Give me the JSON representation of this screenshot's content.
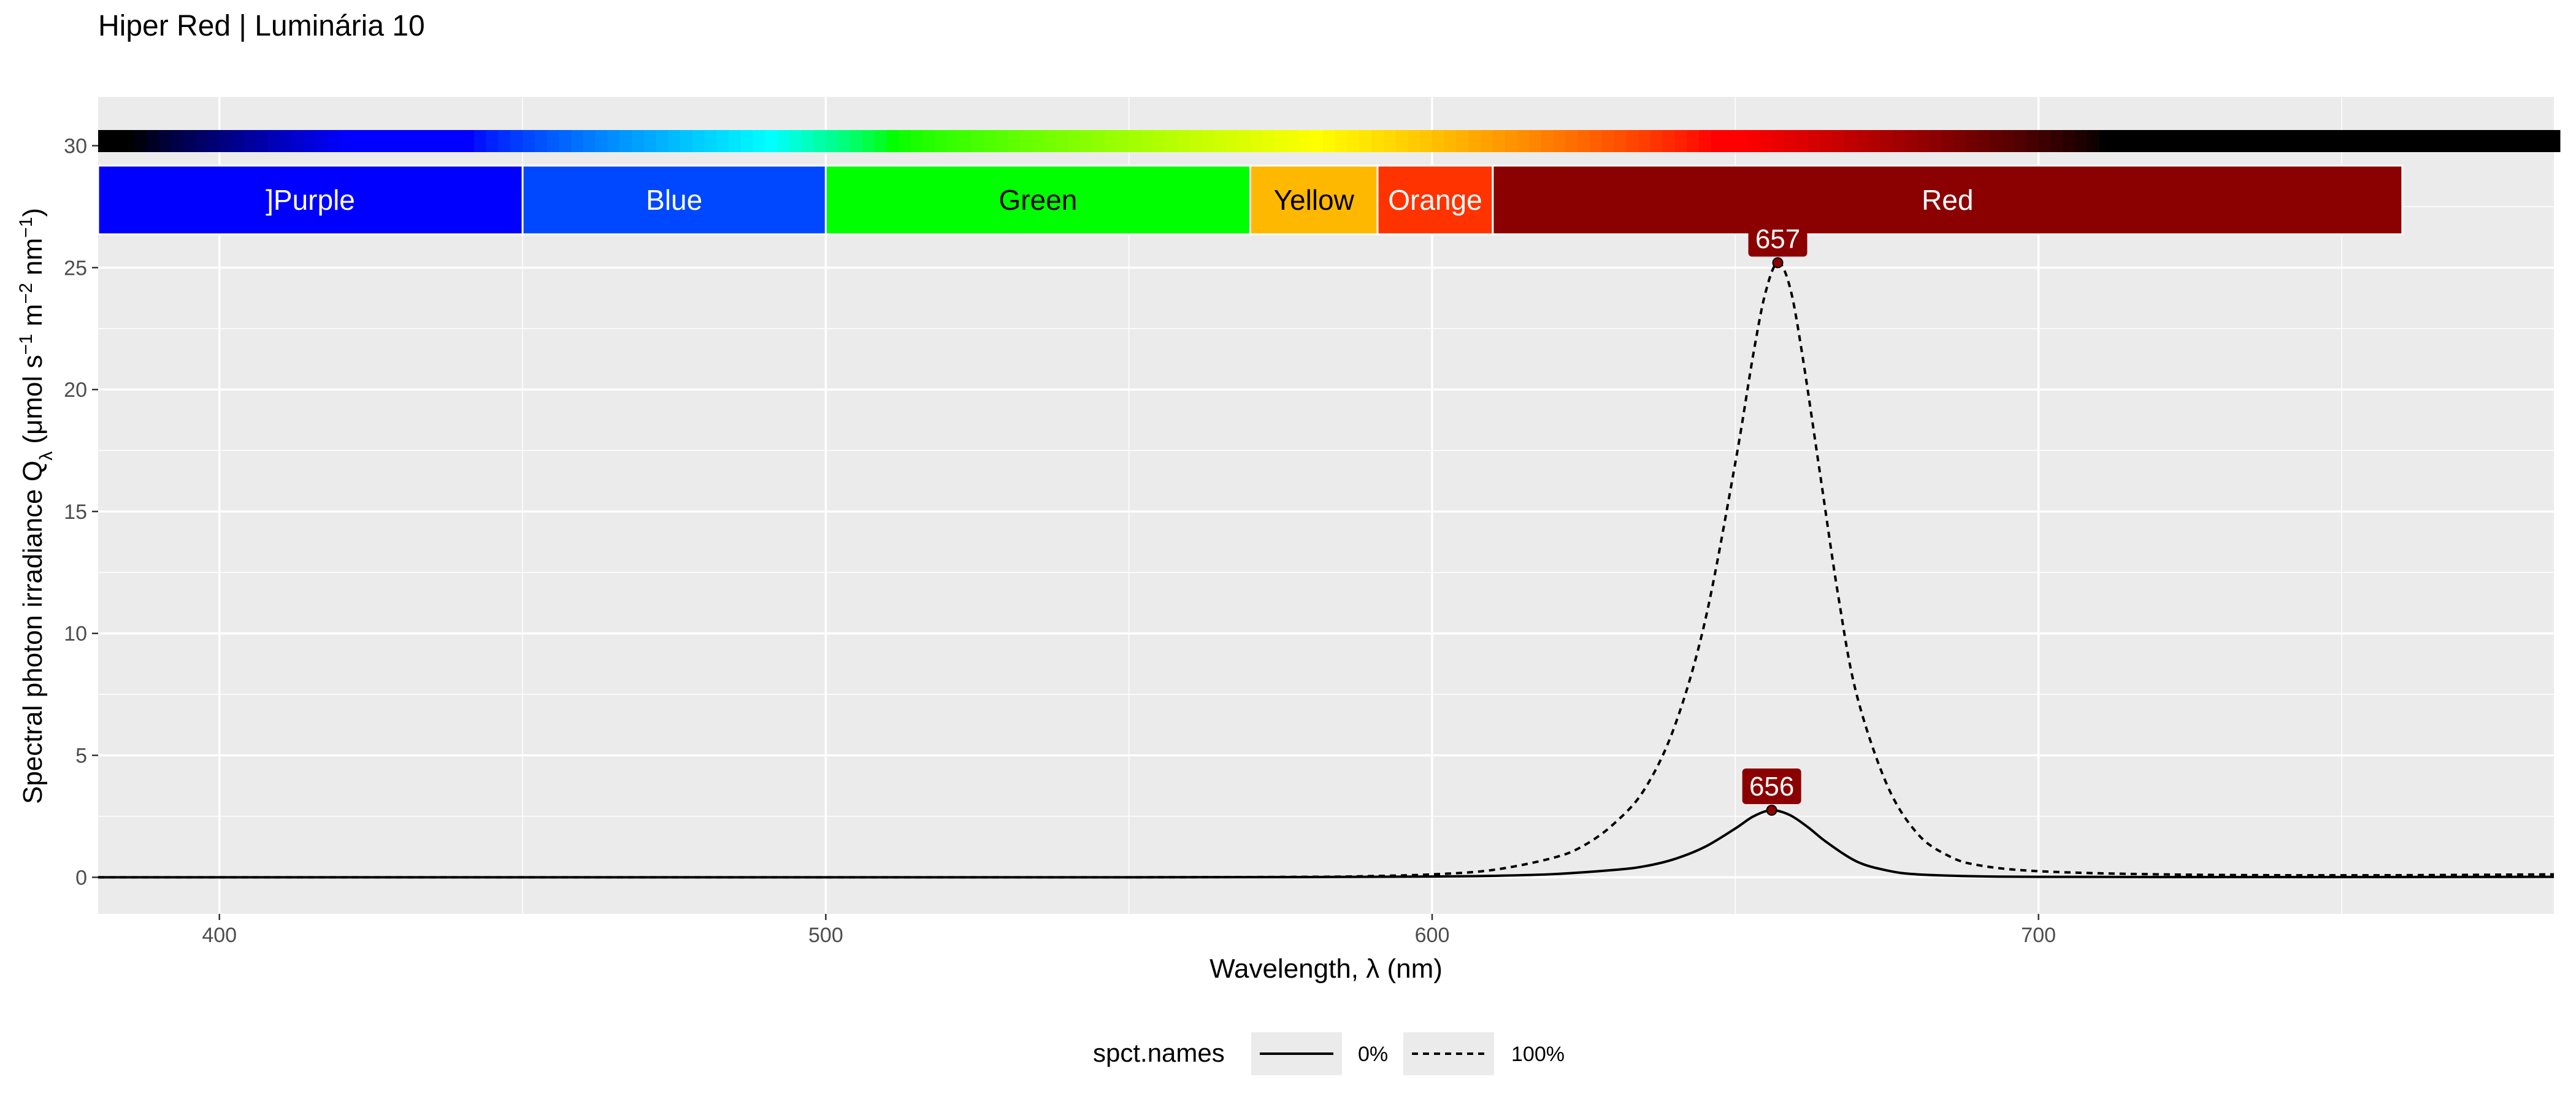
{
  "chart_data": {
    "type": "line",
    "title": "Hiper Red | Luminária 10",
    "xlabel": "Wavelength, λ (nm)",
    "ylabel": {
      "prefix": "Spectral  photon  irradiance  Q",
      "q_sub": "λ",
      "unit_open": "  (μmol s",
      "unit_sup1": "−1",
      "unit_mid": " m",
      "unit_sup2": "−2",
      "unit_mid2": " nm",
      "unit_sup3": "−1",
      "unit_close": ")"
    },
    "xlim": [
      380,
      785
    ],
    "ylim": [
      -1.5,
      32
    ],
    "x_ticks": [
      400,
      500,
      600,
      700
    ],
    "y_ticks": [
      0,
      5,
      10,
      15,
      20,
      25,
      30
    ],
    "grid": true,
    "bands": [
      {
        "label": "]Purple",
        "from": 380,
        "to": 450,
        "fill": "#0000ff",
        "text_color": "#ffffff"
      },
      {
        "label": "Blue",
        "from": 450,
        "to": 500,
        "fill": "#0048ff",
        "text_color": "#ffffff"
      },
      {
        "label": "Green",
        "from": 500,
        "to": 570,
        "fill": "#00ff00",
        "text_color": "#000000"
      },
      {
        "label": "Yellow",
        "from": 570,
        "to": 591,
        "fill": "#ffb800",
        "text_color": "#000000"
      },
      {
        "label": "Orange",
        "from": 591,
        "to": 610,
        "fill": "#ff3300",
        "text_color": "#ffffff"
      },
      {
        "label": "Red",
        "from": 610,
        "to": 760,
        "fill": "#8b0000",
        "text_color": "#ffffff"
      }
    ],
    "series": [
      {
        "name": "0%",
        "dash": "solid",
        "x": [
          380,
          400,
          450,
          500,
          550,
          580,
          600,
          610,
          620,
          630,
          635,
          640,
          645,
          650,
          653,
          656,
          659,
          662,
          665,
          670,
          675,
          680,
          690,
          700,
          720,
          750,
          785
        ],
        "y": [
          0,
          0,
          0,
          0,
          0,
          0.01,
          0.03,
          0.06,
          0.13,
          0.3,
          0.45,
          0.75,
          1.25,
          2.0,
          2.5,
          2.75,
          2.55,
          2.05,
          1.45,
          0.65,
          0.28,
          0.12,
          0.04,
          0.02,
          0.01,
          0.01,
          0.02
        ]
      },
      {
        "name": "100%",
        "dash": "dashed",
        "x": [
          380,
          400,
          450,
          500,
          550,
          580,
          590,
          600,
          610,
          620,
          625,
          630,
          635,
          640,
          645,
          650,
          653,
          655,
          657,
          659,
          661,
          664,
          667,
          670,
          675,
          680,
          685,
          690,
          700,
          720,
          750,
          785
        ],
        "y": [
          0,
          0,
          0,
          0,
          0,
          0.02,
          0.05,
          0.12,
          0.3,
          0.8,
          1.3,
          2.2,
          3.6,
          6.2,
          10.5,
          17.0,
          21.5,
          24.0,
          25.2,
          24.2,
          21.5,
          16.5,
          11.5,
          7.5,
          3.8,
          1.8,
          0.9,
          0.5,
          0.25,
          0.12,
          0.08,
          0.12
        ]
      }
    ],
    "peaks": [
      {
        "label": "657",
        "x": 657,
        "y": 25.2
      },
      {
        "label": "656",
        "x": 656,
        "y": 2.75
      }
    ],
    "legend": {
      "title": "spct.names",
      "position": "bottom",
      "entries": [
        "0%",
        "100%"
      ]
    }
  }
}
